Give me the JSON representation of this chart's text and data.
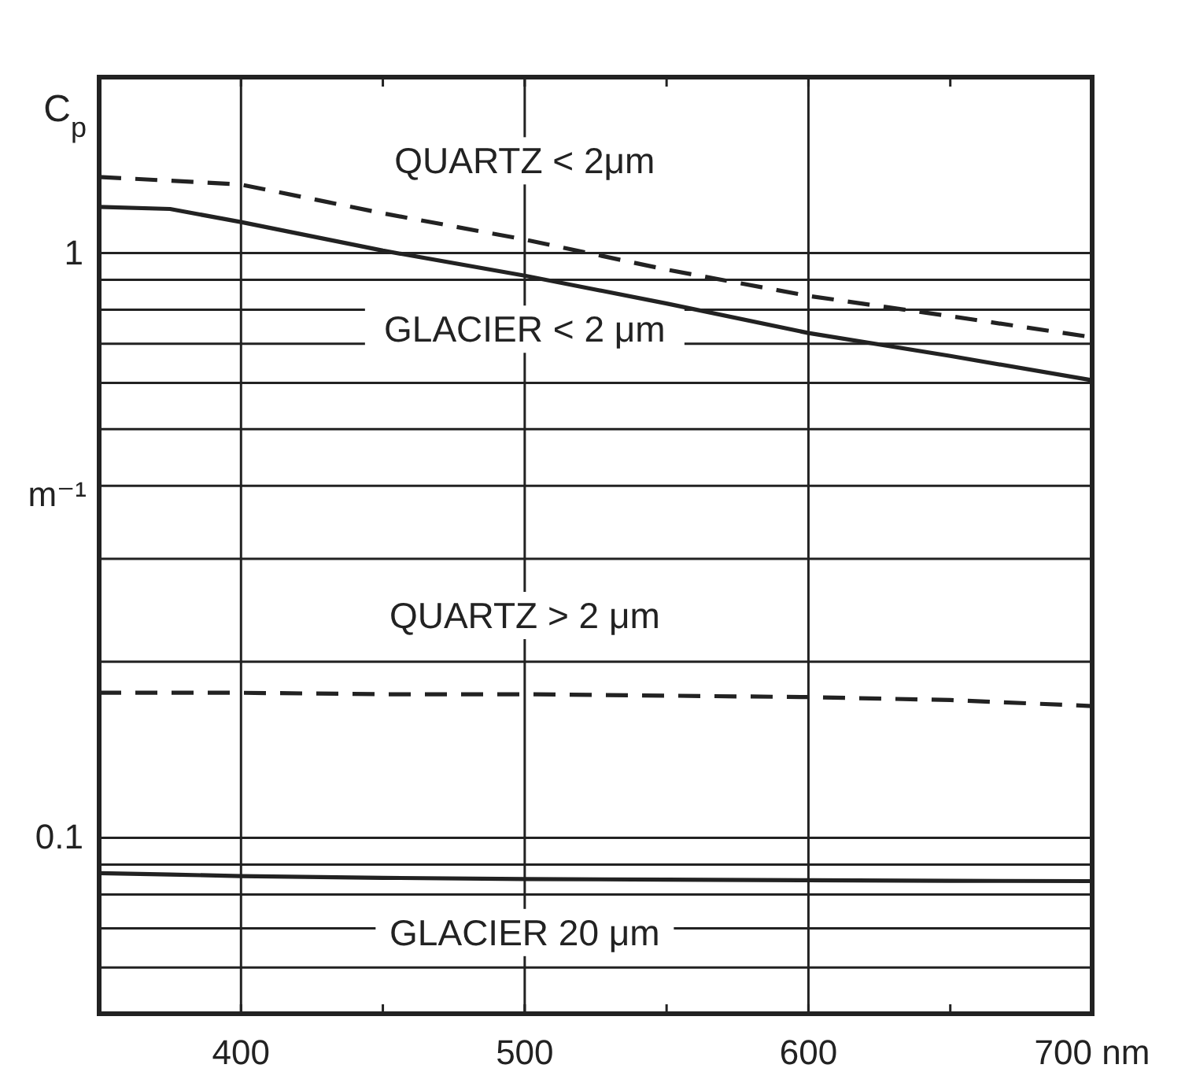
{
  "chart_data": {
    "type": "line",
    "ylabel": "C$_{p}$",
    "log": "y",
    "grid": true,
    "xlim": [
      350,
      700
    ],
    "ylim": [
      0.05,
      2
    ],
    "xticks": [
      400,
      {
        "value": 450,
        "label": null
      },
      500,
      {
        "value": 550,
        "label": null
      },
      600,
      {
        "value": 650,
        "label": null
      },
      {
        "value": 700,
        "label": "700 nm"
      }
    ],
    "yticks": [
      {
        "value": 0.06,
        "label": null
      },
      {
        "value": 0.07,
        "label": null
      },
      {
        "value": 0.08,
        "label": null
      },
      {
        "value": 0.09,
        "label": null
      },
      {
        "value": 0.1,
        "label": "0.1"
      },
      {
        "value": 0.2,
        "label": null
      },
      {
        "value": 0.3,
        "label": null
      },
      {
        "value": 0.4,
        "label": null
      },
      {
        "value": 0.5,
        "label": null
      },
      {
        "value": 0.6,
        "label": null
      },
      {
        "value": 0.7,
        "label": null
      },
      {
        "value": 0.8,
        "label": null
      },
      {
        "value": 0.9,
        "label": null
      },
      1
    ],
    "x": [
      350,
      375,
      400,
      450,
      500,
      550,
      600,
      650,
      700
    ],
    "series": [
      {
        "name": "QUARTZ < 2μm",
        "color": "#222222",
        "line_style": "dashed",
        "values": [
          1.35,
          1.33,
          1.31,
          1.17,
          1.055,
          0.937,
          0.845,
          0.78,
          0.718
        ]
      },
      {
        "name": "GLACIER < 2 μm",
        "color": "#222222",
        "line_style": "solid",
        "values": [
          1.2,
          1.19,
          1.13,
          1.01,
          0.915,
          0.82,
          0.73,
          0.667,
          0.606
        ]
      },
      {
        "name": "QUARTZ > 2 μm",
        "color": "#222222",
        "line_style": "dashed",
        "values": [
          0.177,
          0.177,
          0.177,
          0.176,
          0.176,
          0.175,
          0.174,
          0.172,
          0.168
        ]
      },
      {
        "name": "GLACIER 20 μm",
        "color": "#222222",
        "line_style": "solid",
        "values": [
          0.087,
          0.0865,
          0.086,
          0.0854,
          0.085,
          0.0848,
          0.0846,
          0.0844,
          0.0843
        ]
      }
    ],
    "annotations": [
      "m⁻¹"
    ]
  }
}
